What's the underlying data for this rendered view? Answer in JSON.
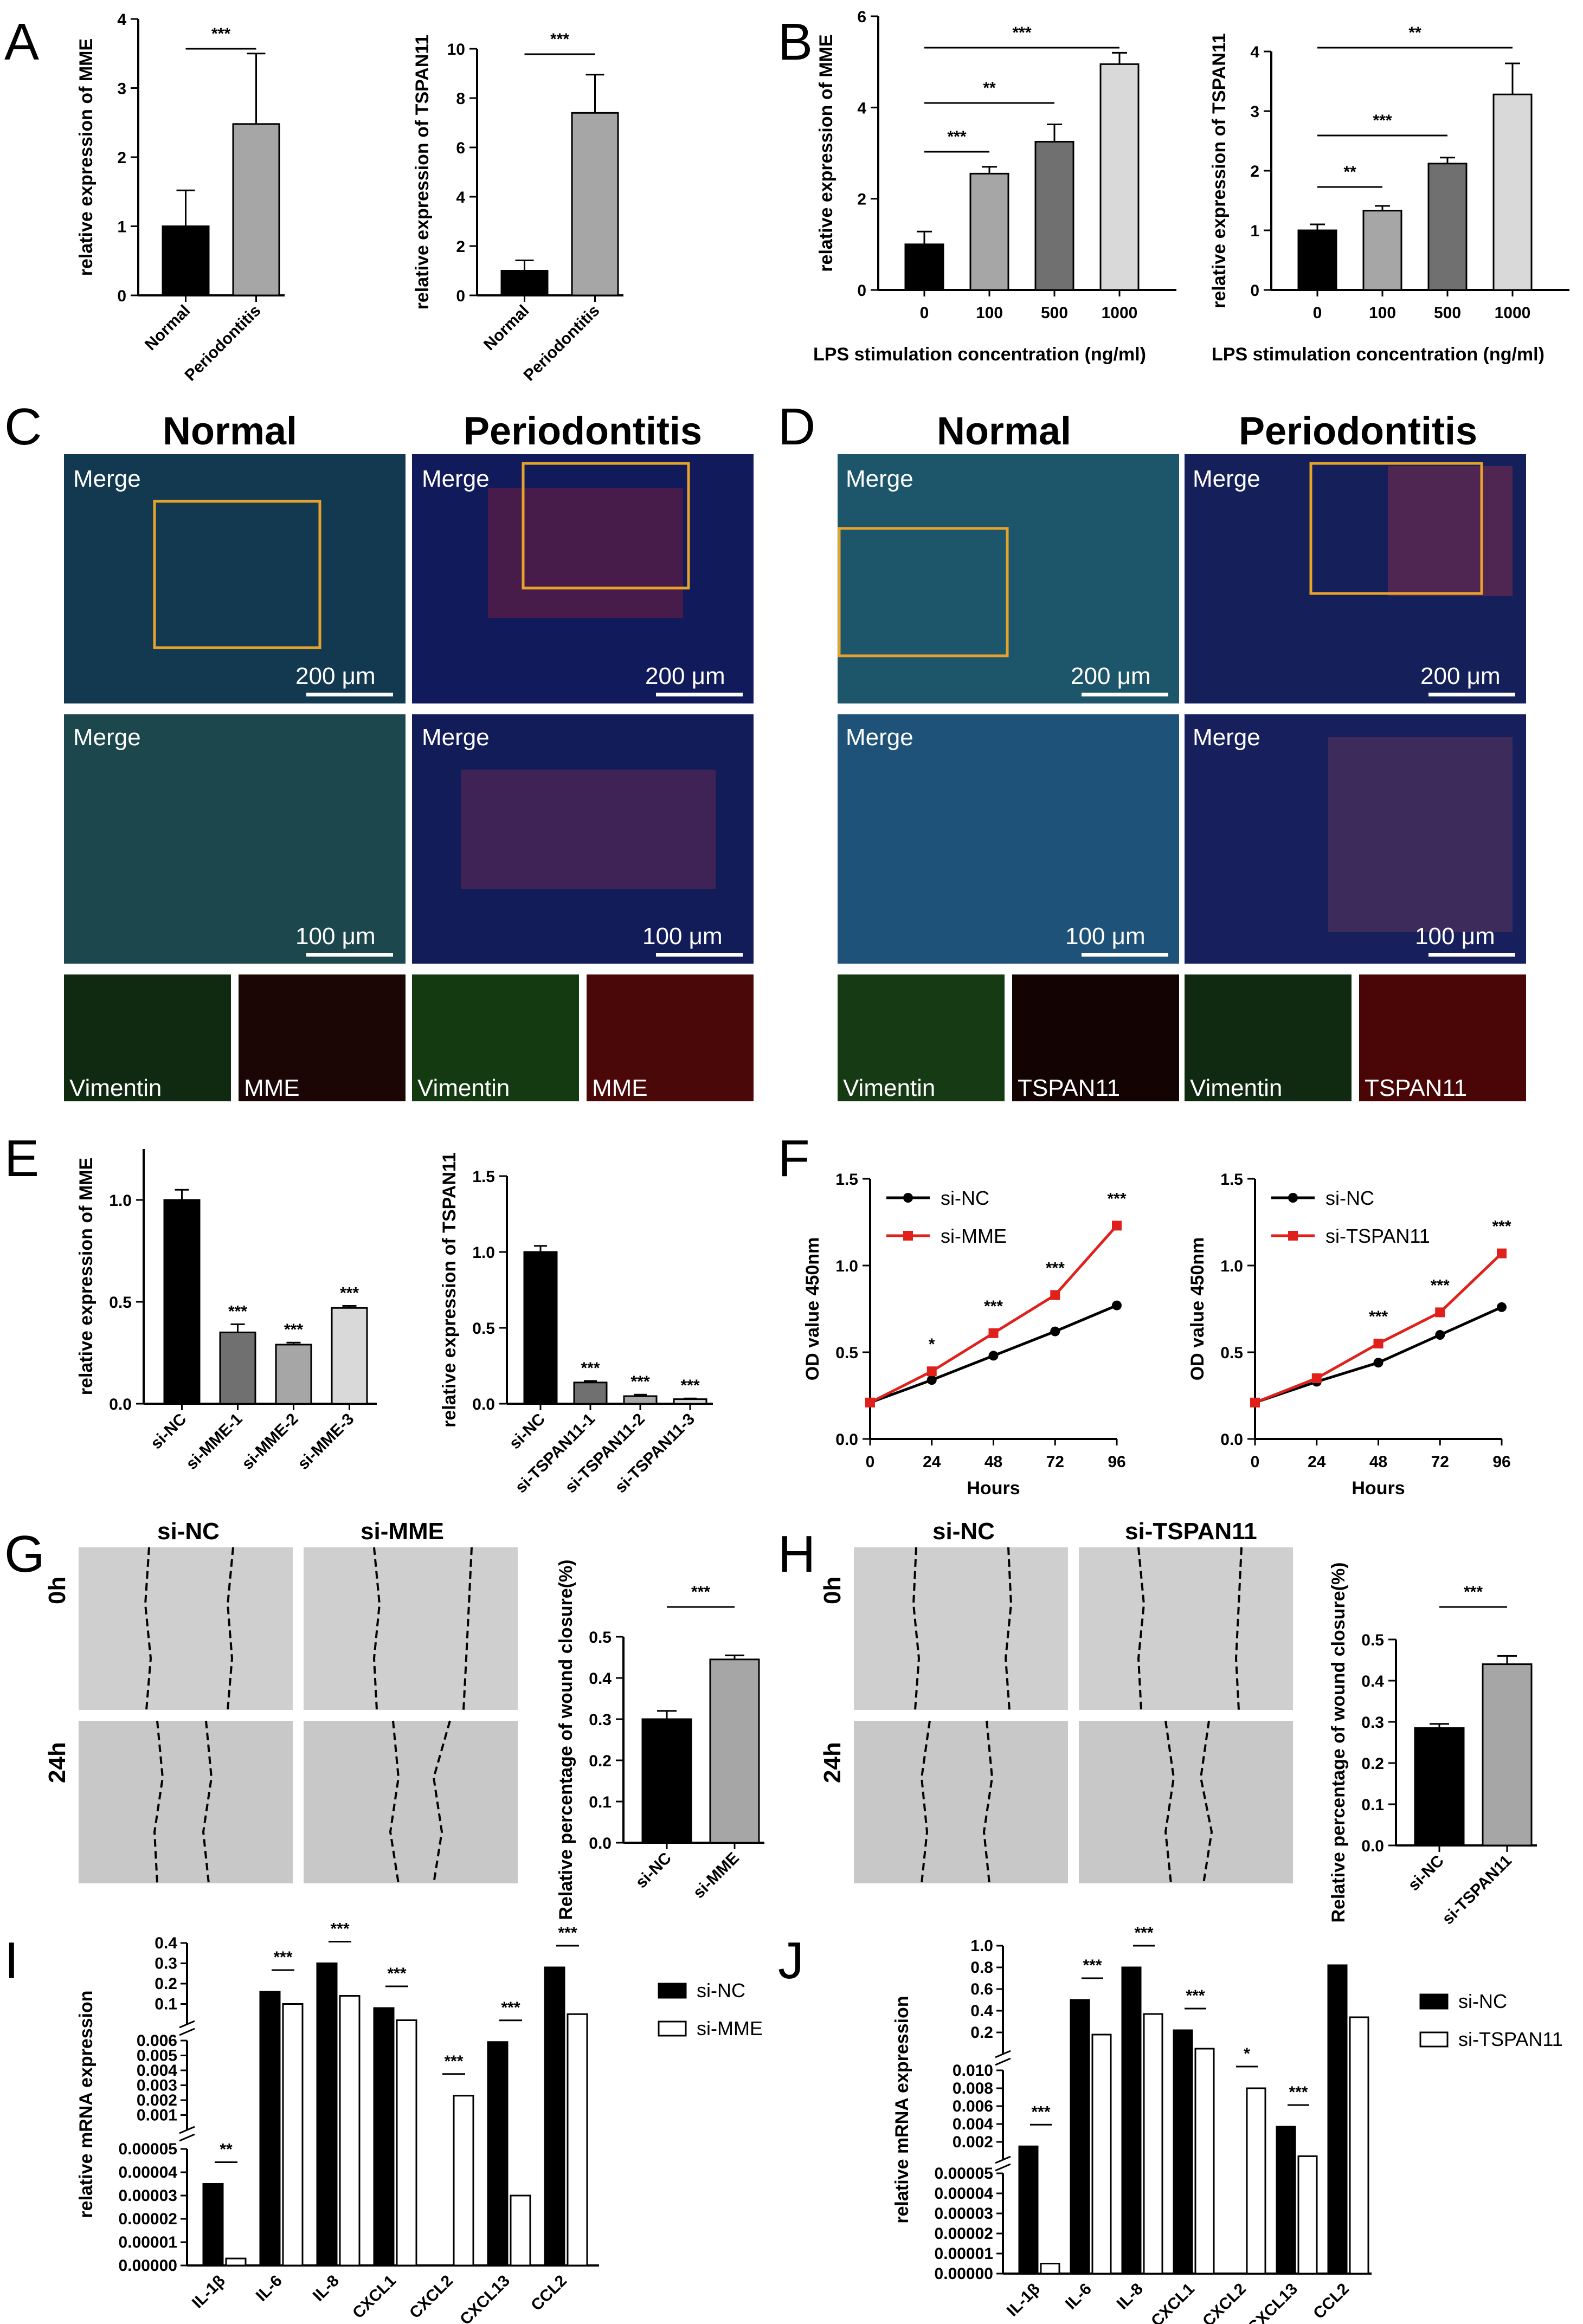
{
  "panels": {
    "A": {
      "letter": "A",
      "charts": [
        {
          "ylabel": "relative expression of MME",
          "yticks": [
            "0",
            "1",
            "2",
            "3",
            "4"
          ],
          "ymax": 4,
          "categories": [
            "Normal",
            "Periodontitis"
          ],
          "values": [
            1.0,
            2.48
          ],
          "errors": [
            0.52,
            1.02
          ],
          "colors": [
            "#000000",
            "#a6a6a6"
          ],
          "sig": [
            {
              "from": 0,
              "to": 1,
              "label": "***"
            }
          ]
        },
        {
          "ylabel": "relative expression of TSPAN11",
          "yticks": [
            "0",
            "2",
            "4",
            "6",
            "8",
            "10"
          ],
          "ymax": 10,
          "categories": [
            "Normal",
            "Periodontitis"
          ],
          "values": [
            1.0,
            7.4
          ],
          "errors": [
            0.42,
            1.55
          ],
          "colors": [
            "#000000",
            "#a6a6a6"
          ],
          "sig": [
            {
              "from": 0,
              "to": 1,
              "label": "***"
            }
          ]
        }
      ]
    },
    "B": {
      "letter": "B",
      "xlabel": "LPS stimulation concentration (ng/ml)",
      "charts": [
        {
          "ylabel": "relative expression of MME",
          "yticks": [
            "0",
            "2",
            "4",
            "6"
          ],
          "ymax": 6,
          "categories": [
            "0",
            "100",
            "500",
            "1000"
          ],
          "values": [
            1.0,
            2.55,
            3.25,
            4.95
          ],
          "errors": [
            0.28,
            0.15,
            0.38,
            0.25
          ],
          "colors": [
            "#000000",
            "#a6a6a6",
            "#707070",
            "#d9d9d9"
          ],
          "sig": [
            {
              "from": 0,
              "to": 1,
              "label": "***"
            },
            {
              "from": 0,
              "to": 2,
              "label": "**"
            },
            {
              "from": 0,
              "to": 3,
              "label": "***"
            }
          ]
        },
        {
          "ylabel": "relative expression of TSPAN11",
          "yticks": [
            "0",
            "1",
            "2",
            "3",
            "4"
          ],
          "ymax": 4,
          "categories": [
            "0",
            "100",
            "500",
            "1000"
          ],
          "values": [
            1.0,
            1.33,
            2.12,
            3.28
          ],
          "errors": [
            0.1,
            0.08,
            0.1,
            0.52
          ],
          "colors": [
            "#000000",
            "#a6a6a6",
            "#707070",
            "#d9d9d9"
          ],
          "sig": [
            {
              "from": 0,
              "to": 1,
              "label": "**"
            },
            {
              "from": 0,
              "to": 2,
              "label": "***"
            },
            {
              "from": 0,
              "to": 3,
              "label": "**"
            }
          ]
        }
      ]
    },
    "C": {
      "letter": "C",
      "col_titles": [
        "Normal",
        "Periodontitis"
      ],
      "merge_label": "Merge",
      "scale_top": "200 μm",
      "scale_mid": "100 μm",
      "bottom_labels": [
        "Vimentin",
        "MME",
        "Vimentin",
        "MME"
      ]
    },
    "D": {
      "letter": "D",
      "col_titles": [
        "Normal",
        "Periodontitis"
      ],
      "merge_label": "Merge",
      "scale_top": "200 μm",
      "scale_mid": "100 μm",
      "bottom_labels": [
        "Vimentin",
        "TSPAN11",
        "Vimentin",
        "TSPAN11"
      ]
    },
    "E": {
      "letter": "E",
      "charts": [
        {
          "ylabel": "relative expression of MME",
          "yticks": [
            "0.0",
            "0.5",
            "1.0"
          ],
          "ymax": 1.25,
          "categories": [
            "si-NC",
            "si-MME-1",
            "si-MME-2",
            "si-MME-3"
          ],
          "values": [
            1.0,
            0.35,
            0.29,
            0.47
          ],
          "errors": [
            0.05,
            0.04,
            0.01,
            0.01
          ],
          "colors": [
            "#000000",
            "#707070",
            "#a6a6a6",
            "#d9d9d9"
          ],
          "labels": [
            "",
            "***",
            "***",
            "***"
          ]
        },
        {
          "ylabel": "relative expression of TSPAN11",
          "yticks": [
            "0.0",
            "0.5",
            "1.0",
            "1.5"
          ],
          "ymax": 1.5,
          "categories": [
            "si-NC",
            "si-TSPAN11-1",
            "si-TSPAN11-2",
            "si-TSPAN11-3"
          ],
          "values": [
            1.0,
            0.14,
            0.05,
            0.03
          ],
          "errors": [
            0.04,
            0.01,
            0.01,
            0.005
          ],
          "colors": [
            "#000000",
            "#707070",
            "#a6a6a6",
            "#d9d9d9"
          ],
          "labels": [
            "",
            "***",
            "***",
            "***"
          ]
        }
      ]
    },
    "F": {
      "letter": "F",
      "xlabel": "Hours",
      "ylabel": "OD value 450nm",
      "yticks": [
        "0.0",
        "0.5",
        "1.0",
        "1.5"
      ],
      "xticks": [
        "0",
        "24",
        "48",
        "72",
        "96"
      ],
      "charts": [
        {
          "series": [
            {
              "name": "si-NC",
              "color": "#000000",
              "values": [
                0.21,
                0.34,
                0.48,
                0.62,
                0.77
              ]
            },
            {
              "name": "si-MME",
              "color": "#e0201b",
              "values": [
                0.21,
                0.39,
                0.61,
                0.83,
                1.23
              ]
            }
          ],
          "labels": [
            "",
            "*",
            "***",
            "***",
            "***"
          ]
        },
        {
          "series": [
            {
              "name": "si-NC",
              "color": "#000000",
              "values": [
                0.21,
                0.33,
                0.44,
                0.6,
                0.76
              ]
            },
            {
              "name": "si-TSPAN11",
              "color": "#e0201b",
              "values": [
                0.21,
                0.35,
                0.55,
                0.73,
                1.07
              ]
            }
          ],
          "labels": [
            "",
            "",
            "***",
            "***",
            "***"
          ]
        }
      ]
    },
    "G": {
      "letter": "G",
      "col_titles": [
        "si-NC",
        "si-MME"
      ],
      "row_labels": [
        "0h",
        "24h"
      ],
      "chart": {
        "ylabel": "Relative percentage of wound closure(%)",
        "yticks": [
          "0.0",
          "0.1",
          "0.2",
          "0.3",
          "0.4",
          "0.5"
        ],
        "ymax": 0.5,
        "categories": [
          "si-NC",
          "si-MME"
        ],
        "values": [
          0.3,
          0.445
        ],
        "errors": [
          0.02,
          0.01
        ],
        "colors": [
          "#000000",
          "#a6a6a6"
        ],
        "sig": "***"
      }
    },
    "H": {
      "letter": "H",
      "col_titles": [
        "si-NC",
        "si-TSPAN11"
      ],
      "row_labels": [
        "0h",
        "24h"
      ],
      "chart": {
        "ylabel": "Relative percentage of wound closure(%)",
        "yticks": [
          "0.0",
          "0.1",
          "0.2",
          "0.3",
          "0.4",
          "0.5"
        ],
        "ymax": 0.5,
        "categories": [
          "si-NC",
          "si-TSPAN11"
        ],
        "values": [
          0.285,
          0.44
        ],
        "errors": [
          0.01,
          0.02
        ],
        "colors": [
          "#000000",
          "#a6a6a6"
        ],
        "sig": "***"
      }
    },
    "I": {
      "letter": "I",
      "ylabel": "relative mRNA expression",
      "categories": [
        "IL-1β",
        "IL-6",
        "IL-8",
        "CXCL1",
        "CXCL2",
        "CXCL13",
        "CCL2"
      ],
      "segments": [
        {
          "ticks": [
            "0.1",
            "0.2",
            "0.3",
            "0.4"
          ],
          "min": 0.0,
          "max": 0.4
        },
        {
          "ticks": [
            "0.001",
            "0.002",
            "0.003",
            "0.004",
            "0.005",
            "0.006"
          ],
          "min": 0.0,
          "max": 0.006
        },
        {
          "ticks": [
            "0.00000",
            "0.00001",
            "0.00002",
            "0.00003",
            "0.00004",
            "0.00005"
          ],
          "min": 0.0,
          "max": 5e-05
        }
      ],
      "nc": [
        3.5e-05,
        0.16,
        0.3,
        0.08,
        0.0,
        0.0059,
        0.28
      ],
      "kd": [
        3e-06,
        0.1,
        0.14,
        0.02,
        0.0023,
        3e-05,
        0.05
      ],
      "sig": [
        "**",
        "***",
        "***",
        "***",
        "***",
        "***",
        "***"
      ],
      "legend": [
        "si-NC",
        "si-MME"
      ]
    },
    "J": {
      "letter": "J",
      "ylabel": "relative mRNA expression",
      "categories": [
        "IL-1β",
        "IL-6",
        "IL-8",
        "CXCL1",
        "CXCL2",
        "CXCL13",
        "CCL2"
      ],
      "segments": [
        {
          "ticks": [
            "0.2",
            "0.4",
            "0.6",
            "0.8",
            "1.0"
          ],
          "min": 0.0,
          "max": 1.0
        },
        {
          "ticks": [
            "0.002",
            "0.004",
            "0.006",
            "0.008",
            "0.010"
          ],
          "min": 0.0,
          "max": 0.01
        },
        {
          "ticks": [
            "0.00000",
            "0.00001",
            "0.00002",
            "0.00003",
            "0.00004",
            "0.00005"
          ],
          "min": 0.0,
          "max": 5e-05
        }
      ],
      "nc": [
        0.0015,
        0.5,
        0.8,
        0.22,
        0.0,
        0.0037,
        0.82
      ],
      "kd": [
        5e-06,
        0.18,
        0.37,
        0.05,
        0.008,
        0.0004,
        0.34
      ],
      "sig": [
        "***",
        "***",
        "***",
        "***",
        "*",
        "***",
        ""
      ],
      "legend": [
        "si-NC",
        "si-TSPAN11"
      ]
    }
  }
}
